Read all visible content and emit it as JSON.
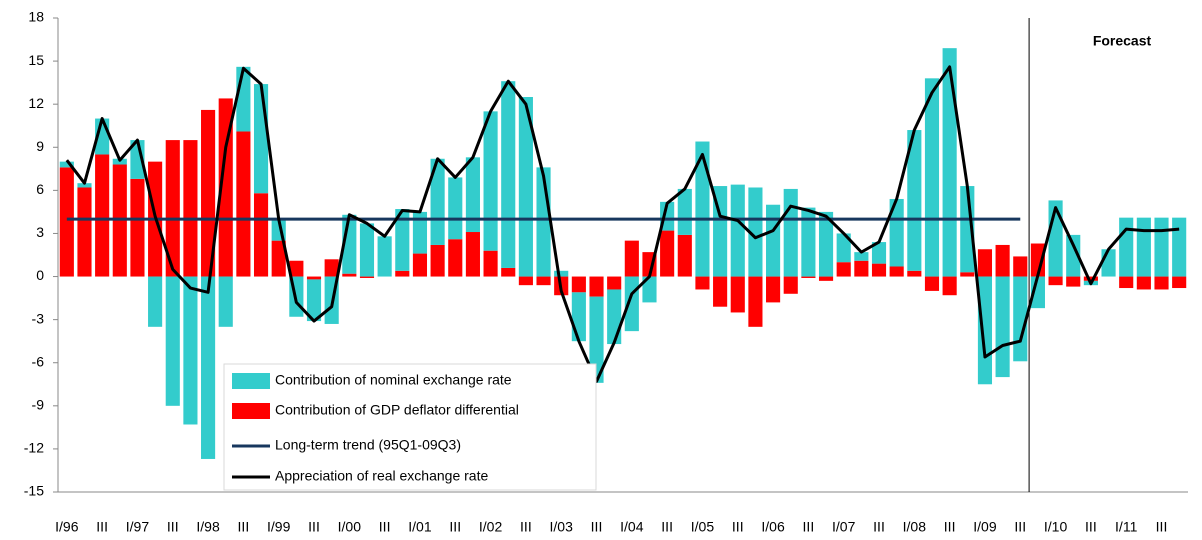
{
  "chart_data": {
    "type": "bar",
    "stacked": true,
    "categories": [
      "I/96",
      null,
      "III",
      null,
      "I/97",
      null,
      "III",
      null,
      "I/98",
      null,
      "III",
      null,
      "I/99",
      null,
      "III",
      null,
      "I/00",
      null,
      "III",
      null,
      "I/01",
      null,
      "III",
      null,
      "I/02",
      null,
      "III",
      null,
      "I/03",
      null,
      "III",
      null,
      "I/04",
      null,
      "III",
      null,
      "I/05",
      null,
      "III",
      null,
      "I/06",
      null,
      "III",
      null,
      "I/07",
      null,
      "III",
      null,
      "I/08",
      null,
      "III",
      null,
      "I/09",
      null,
      "III",
      null,
      "I/10",
      null,
      "III",
      null,
      "I/11",
      null,
      "III",
      null
    ],
    "series": [
      {
        "name": "Contribution of nominal exchange rate",
        "type": "bar",
        "color": "#33cccc",
        "values": [
          0.4,
          0.3,
          2.5,
          0.4,
          2.7,
          -3.5,
          -9,
          -10.3,
          -12.7,
          -3.5,
          4.5,
          7.6,
          1.4,
          -2.8,
          -2.9,
          -3.3,
          4.1,
          3.7,
          2.8,
          4.3,
          2.9,
          6.0,
          4.3,
          5.2,
          9.7,
          13.0,
          12.5,
          7.6,
          0.4,
          -3.4,
          -6.0,
          -3.8,
          -3.8,
          -1.8,
          2.0,
          3.2,
          9.4,
          6.3,
          6.4,
          6.2,
          5.0,
          6.1,
          4.8,
          4.5,
          2.0,
          0.6,
          1.5,
          4.7,
          9.8,
          13.8,
          15.9,
          6.0,
          -7.5,
          -7.0,
          -5.9,
          -2.2,
          5.3,
          2.9,
          -0.3,
          1.9,
          4.1,
          4.1,
          4.1,
          4.1
        ]
      },
      {
        "name": "Contribution of GDP deflator differential",
        "type": "bar",
        "color": "#ff0000",
        "values": [
          7.6,
          6.2,
          8.5,
          7.8,
          6.8,
          8.0,
          9.5,
          9.5,
          11.6,
          12.4,
          10.1,
          5.8,
          2.5,
          1.1,
          -0.2,
          1.2,
          0.2,
          -0.1,
          0,
          0.4,
          1.6,
          2.2,
          2.6,
          3.1,
          1.8,
          0.6,
          -0.6,
          -0.6,
          -1.3,
          -1.1,
          -1.4,
          -0.9,
          2.5,
          1.7,
          3.2,
          2.9,
          -0.9,
          -2.1,
          -2.5,
          -3.5,
          -1.8,
          -1.2,
          -0.1,
          -0.3,
          1.0,
          1.1,
          0.9,
          0.7,
          0.4,
          -1.0,
          -1.3,
          0.3,
          1.9,
          2.2,
          1.4,
          2.3,
          -0.6,
          -0.7,
          -0.3,
          0,
          -0.8,
          -0.9,
          -0.9,
          -0.8
        ]
      },
      {
        "name": "Long-term trend (95Q1-09Q3)",
        "type": "line",
        "color": "#17375e",
        "values": [
          4,
          4,
          4,
          4,
          4,
          4,
          4,
          4,
          4,
          4,
          4,
          4,
          4,
          4,
          4,
          4,
          4,
          4,
          4,
          4,
          4,
          4,
          4,
          4,
          4,
          4,
          4,
          4,
          4,
          4,
          4,
          4,
          4,
          4,
          4,
          4,
          4,
          4,
          4,
          4,
          4,
          4,
          4,
          4,
          4,
          4,
          4,
          4,
          4,
          4,
          4,
          4,
          4,
          4,
          4,
          null,
          null,
          null,
          null,
          null,
          null,
          null,
          null,
          null
        ]
      },
      {
        "name": "Appreciation of real exchange rate",
        "type": "line",
        "color": "#000000",
        "values": [
          8.1,
          6.5,
          11,
          8.1,
          9.5,
          4.2,
          0.5,
          -0.8,
          -1.1,
          9,
          14.5,
          13.4,
          4,
          -1.8,
          -3.1,
          -2.1,
          4.3,
          3.7,
          2.8,
          4.6,
          4.5,
          8.2,
          6.9,
          8.3,
          11.5,
          13.6,
          12,
          7,
          -1,
          -4.5,
          -7.3,
          -4.6,
          -1.2,
          0,
          5.1,
          6.1,
          8.5,
          4.2,
          3.9,
          2.7,
          3.2,
          4.9,
          4.6,
          4.2,
          3,
          1.7,
          2.4,
          5.4,
          10.2,
          12.8,
          14.6,
          6.3,
          -5.6,
          -4.8,
          -4.5,
          0.1,
          4.8,
          2.2,
          -0.5,
          1.9,
          3.3,
          3.2,
          3.2,
          3.3
        ]
      }
    ],
    "annotation": "Forecast",
    "ylim": [
      -15,
      18
    ],
    "yticks": [
      -15,
      -12,
      -9,
      -6,
      -3,
      0,
      3,
      6,
      9,
      12,
      15,
      18
    ],
    "grid": false,
    "legend": "lower-left"
  }
}
